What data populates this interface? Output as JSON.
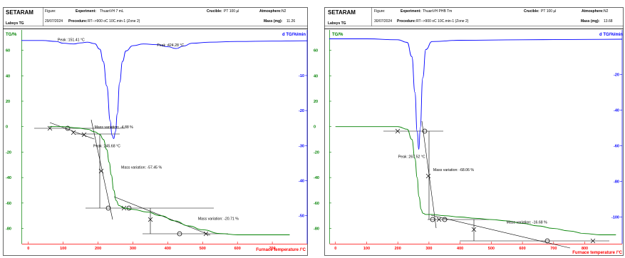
{
  "chart_data": [
    {
      "type": "line",
      "header": {
        "brand": "SETARAM",
        "instrument": "Labsys TG",
        "figure_label": "Figure:",
        "date": "29/07/2024",
        "experiment_label": "Experiment:",
        "experiment": "ThuanVH 7 mL",
        "procedure_label": "Procedure:",
        "procedure": "RT-->900 oC 10C.min-1 (Zone 2)",
        "crucible_label": "Crucible:",
        "crucible": "PT 100 µl",
        "atmosphere_label": "Atmosphere:",
        "atmosphere": "N2",
        "mass_label": "Mass (mg):",
        "mass": "11.26"
      },
      "ylabel_left": "TG/%",
      "ylabel_right": "d TG/%/min",
      "xlabel": "Furnace temperature /°C",
      "xlim": [
        -20,
        800
      ],
      "ylim_left": [
        -92,
        76
      ],
      "ylim_right": [
        -58,
        3
      ],
      "x_ticks": [
        0,
        100,
        200,
        300,
        400,
        500,
        600,
        700
      ],
      "y_ticks_left": [
        60,
        40,
        20,
        0,
        -20,
        -40,
        -60,
        -80
      ],
      "y_ticks_right": [
        -10,
        -20,
        -30,
        -40,
        -50
      ],
      "series": [
        {
          "axis": "left",
          "color": "#008000",
          "x": [
            60,
            100,
            140,
            170,
            190,
            205,
            215,
            225,
            232,
            238,
            245,
            252,
            260,
            275,
            300,
            340,
            380,
            420,
            460,
            500,
            550,
            600,
            650,
            700,
            750
          ],
          "y": [
            0,
            0,
            -1,
            -2,
            -4,
            -6,
            -10,
            -18,
            -28,
            -38,
            -50,
            -58,
            -62,
            -64,
            -65,
            -67,
            -70,
            -74,
            -78,
            -81,
            -84,
            -85,
            -85,
            -85,
            -85
          ]
        },
        {
          "axis": "right",
          "color": "#0000ff",
          "x": [
            -20,
            40,
            80,
            100,
            130,
            150,
            170,
            190,
            205,
            215,
            225,
            235,
            240,
            245,
            250,
            255,
            262,
            270,
            280,
            300,
            330,
            370,
            400,
            424,
            445,
            470,
            520,
            600,
            700,
            800
          ],
          "y": [
            0,
            0,
            -0.3,
            -0.8,
            -1,
            -0.7,
            -0.5,
            -0.9,
            -2.5,
            -6,
            -13,
            -23,
            -27,
            -28,
            -26,
            -21,
            -12,
            -6,
            -3,
            -1.5,
            -1,
            -1.2,
            -1.8,
            -2.3,
            -1.6,
            -0.8,
            -0.5,
            -0.3,
            -0.2,
            -0.1
          ]
        }
      ],
      "peak_labels": [
        {
          "text": "Peak :151.41 °C",
          "x": 151.41,
          "y": -1
        },
        {
          "text": "Peak :245.68 °C",
          "x": 245.68,
          "y": -28
        },
        {
          "text": "Peak :424.28 °C",
          "x": 424.28,
          "y": -2.3
        }
      ],
      "mass_variations": [
        {
          "text": "Mass variation: -4.88 %",
          "x": 200,
          "y": -3
        },
        {
          "text": "Mass variation: -57.45 %",
          "x": 250,
          "y": -33
        },
        {
          "text": "Mass variation: -20.71 %",
          "x": 450,
          "y": -72
        }
      ]
    },
    {
      "type": "line",
      "header": {
        "brand": "SETARAM",
        "instrument": "Labsys TG",
        "figure_label": "Figure:",
        "date": "30/07/2024",
        "experiment_label": "Experiment:",
        "experiment": "ThuanVH PHB Tm",
        "procedure_label": "Procedure:",
        "procedure": "RT-->900 oC 10C.min-1 (Zone 2)",
        "crucible_label": "Crucible:",
        "crucible": "PT 100 µl",
        "atmosphere_label": "Atmosphere:",
        "atmosphere": "N2",
        "mass_label": "Mass (mg):",
        "mass": "13.68"
      },
      "ylabel_left": "TG/%",
      "ylabel_right": "d TG/%/min",
      "xlabel": "Furnace temperature /°C",
      "xlim": [
        -20,
        920
      ],
      "ylim_left": [
        -92,
        76
      ],
      "ylim_right": [
        -115,
        5
      ],
      "x_ticks": [
        0,
        100,
        200,
        300,
        400,
        500,
        600,
        700,
        800
      ],
      "y_ticks_left": [
        60,
        40,
        20,
        0,
        -20,
        -40,
        -60,
        -80
      ],
      "y_ticks_right": [
        -20,
        -40,
        -60,
        -80,
        -100
      ],
      "series": [
        {
          "axis": "left",
          "color": "#008000",
          "x": [
            0,
            100,
            200,
            230,
            245,
            255,
            262,
            268,
            275,
            280,
            290,
            310,
            350,
            400,
            450,
            500,
            550,
            600,
            650,
            700,
            750,
            800,
            850,
            900
          ],
          "y": [
            0,
            0,
            0,
            -2,
            -10,
            -25,
            -40,
            -55,
            -65,
            -68,
            -69,
            -69,
            -70,
            -71,
            -72,
            -73,
            -74,
            -76,
            -78,
            -80,
            -82,
            -84,
            -85,
            -85
          ]
        },
        {
          "axis": "right",
          "color": "#0000ff",
          "x": [
            -20,
            100,
            200,
            230,
            245,
            255,
            262,
            267.52,
            272,
            280,
            290,
            310,
            400,
            600,
            800,
            920
          ],
          "y": [
            0,
            0,
            -0.5,
            -2,
            -10,
            -30,
            -52,
            -62,
            -50,
            -22,
            -6,
            -1.5,
            -0.8,
            -0.5,
            -0.3,
            -0.2
          ]
        }
      ],
      "peak_labels": [
        {
          "text": "Peak :267.52 °C",
          "x": 267.52,
          "y": -62
        }
      ],
      "mass_variations": [
        {
          "text": "Mass variation: -68.06 %",
          "x": 300,
          "y": -36
        },
        {
          "text": "Mass variation: -16.68 %",
          "x": 480,
          "y": -75
        }
      ]
    }
  ]
}
